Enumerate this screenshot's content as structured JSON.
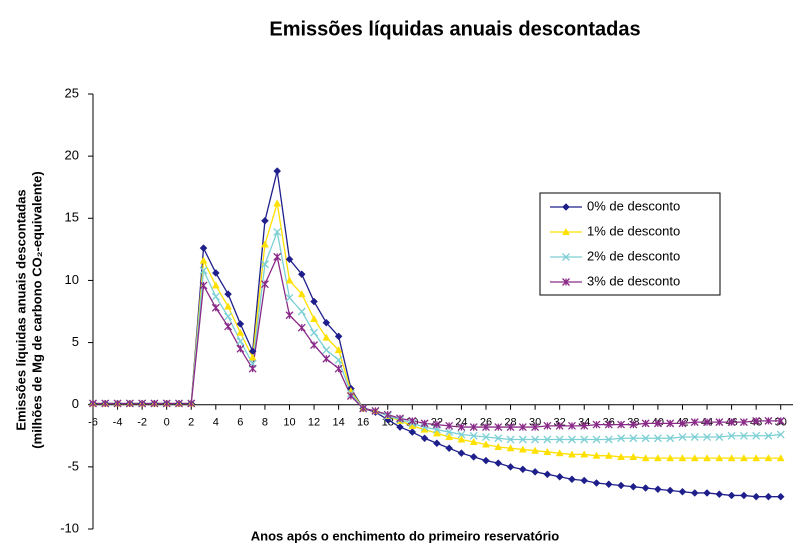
{
  "chart_data": {
    "type": "line",
    "title": "Emissões líquidas anuais descontadas",
    "x_label": "Anos após o enchimento do primeiro reservatório",
    "y_label": [
      "Emissões líquidas anuais descontadas",
      "(milhões de Mg de carbono CO₂-equivalente)"
    ],
    "x": [
      -6,
      -5,
      -4,
      -3,
      -2,
      -1,
      0,
      1,
      2,
      3,
      4,
      5,
      6,
      7,
      8,
      9,
      10,
      11,
      12,
      13,
      14,
      15,
      16,
      17,
      18,
      19,
      20,
      21,
      22,
      23,
      24,
      25,
      26,
      27,
      28,
      29,
      30,
      31,
      32,
      33,
      34,
      35,
      36,
      37,
      38,
      39,
      40,
      41,
      42,
      43,
      44,
      45,
      46,
      47,
      48,
      49,
      50
    ],
    "xlim": [
      -6,
      51
    ],
    "xticks": [
      -6,
      -4,
      -2,
      0,
      2,
      4,
      6,
      8,
      10,
      12,
      14,
      16,
      18,
      20,
      22,
      24,
      26,
      28,
      30,
      32,
      34,
      36,
      38,
      40,
      42,
      44,
      46,
      48,
      50
    ],
    "ylim": [
      -10,
      25
    ],
    "yticks": [
      -10,
      -5,
      0,
      5,
      10,
      15,
      20,
      25
    ],
    "legend": "right",
    "series": [
      {
        "name": "0% de desconto",
        "color": "#1f1f8c",
        "marker": "diamond",
        "values": [
          0.1,
          0.1,
          0.1,
          0.1,
          0.1,
          0.1,
          0.1,
          0.1,
          0.1,
          12.6,
          10.6,
          8.9,
          6.5,
          4.3,
          14.8,
          18.8,
          11.7,
          10.5,
          8.3,
          6.6,
          5.5,
          1.3,
          -0.3,
          -0.6,
          -1.2,
          -1.8,
          -2.2,
          -2.7,
          -3.1,
          -3.5,
          -3.9,
          -4.2,
          -4.5,
          -4.7,
          -5.0,
          -5.2,
          -5.4,
          -5.6,
          -5.8,
          -6.0,
          -6.1,
          -6.3,
          -6.4,
          -6.5,
          -6.6,
          -6.7,
          -6.8,
          -6.9,
          -7.0,
          -7.1,
          -7.1,
          -7.2,
          -7.3,
          -7.3,
          -7.4,
          -7.4,
          -7.4
        ]
      },
      {
        "name": "1% de desconto",
        "color": "#ffe000",
        "marker": "triangle",
        "values": [
          0.1,
          0.1,
          0.1,
          0.1,
          0.1,
          0.1,
          0.1,
          0.1,
          0.1,
          11.6,
          9.6,
          7.9,
          5.8,
          3.8,
          12.9,
          16.2,
          10.0,
          8.9,
          6.9,
          5.4,
          4.4,
          1.1,
          -0.3,
          -0.5,
          -0.9,
          -1.3,
          -1.7,
          -2.0,
          -2.3,
          -2.6,
          -2.8,
          -3.0,
          -3.2,
          -3.4,
          -3.5,
          -3.6,
          -3.7,
          -3.8,
          -3.9,
          -4.0,
          -4.0,
          -4.1,
          -4.1,
          -4.2,
          -4.2,
          -4.3,
          -4.3,
          -4.3,
          -4.3,
          -4.3,
          -4.3,
          -4.3,
          -4.3,
          -4.3,
          -4.3,
          -4.3,
          -4.3
        ]
      },
      {
        "name": "2% de desconto",
        "color": "#7ccfd4",
        "marker": "x",
        "values": [
          0.1,
          0.1,
          0.1,
          0.1,
          0.1,
          0.1,
          0.1,
          0.1,
          0.1,
          10.8,
          8.7,
          7.1,
          5.1,
          3.3,
          11.3,
          13.9,
          8.6,
          7.5,
          5.8,
          4.4,
          3.6,
          0.9,
          -0.3,
          -0.5,
          -0.9,
          -1.2,
          -1.5,
          -1.8,
          -2.0,
          -2.2,
          -2.4,
          -2.5,
          -2.6,
          -2.7,
          -2.8,
          -2.8,
          -2.8,
          -2.8,
          -2.8,
          -2.8,
          -2.8,
          -2.8,
          -2.8,
          -2.7,
          -2.7,
          -2.7,
          -2.7,
          -2.7,
          -2.6,
          -2.6,
          -2.6,
          -2.6,
          -2.5,
          -2.5,
          -2.5,
          -2.5,
          -2.4
        ]
      },
      {
        "name": "3% de desconto",
        "color": "#8a2a88",
        "marker": "asterisk",
        "values": [
          0.1,
          0.1,
          0.1,
          0.1,
          0.1,
          0.1,
          0.1,
          0.1,
          0.1,
          9.6,
          7.8,
          6.3,
          4.5,
          2.9,
          9.7,
          11.9,
          7.2,
          6.2,
          4.8,
          3.7,
          2.9,
          0.7,
          -0.3,
          -0.5,
          -0.8,
          -1.1,
          -1.3,
          -1.5,
          -1.6,
          -1.7,
          -1.8,
          -1.8,
          -1.8,
          -1.8,
          -1.8,
          -1.8,
          -1.8,
          -1.7,
          -1.7,
          -1.7,
          -1.7,
          -1.6,
          -1.6,
          -1.6,
          -1.6,
          -1.5,
          -1.5,
          -1.5,
          -1.5,
          -1.4,
          -1.4,
          -1.4,
          -1.4,
          -1.4,
          -1.3,
          -1.3,
          -1.3
        ]
      }
    ]
  }
}
